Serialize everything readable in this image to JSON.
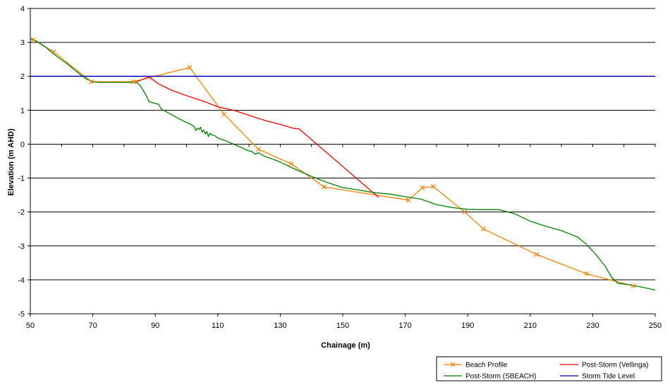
{
  "chart_data": {
    "type": "line",
    "title": "",
    "xlabel": "Chainage (m)",
    "ylabel": "Elevation (m AHD)",
    "xlim": [
      50,
      250
    ],
    "ylim": [
      -5,
      4
    ],
    "x_ticks": [
      50,
      70,
      90,
      110,
      130,
      150,
      170,
      190,
      210,
      230,
      250
    ],
    "y_ticks": [
      4,
      3,
      2,
      1,
      0,
      -1,
      -2,
      -3,
      -4,
      -5
    ],
    "grid": "horizontal",
    "legend_position": "bottom-right",
    "series": [
      {
        "name": "Beach Profile",
        "color": "#FF8000",
        "marker": "x",
        "points": [
          [
            51,
            3.08
          ],
          [
            57.5,
            2.72
          ],
          [
            69.5,
            1.84
          ],
          [
            83,
            1.84
          ],
          [
            101,
            2.26
          ],
          [
            112,
            0.88
          ],
          [
            123,
            -0.15
          ],
          [
            133.5,
            -0.58
          ],
          [
            144,
            -1.26
          ],
          [
            171,
            -1.65
          ],
          [
            175.5,
            -1.28
          ],
          [
            179,
            -1.25
          ],
          [
            189,
            -2.0
          ],
          [
            195,
            -2.5
          ],
          [
            212,
            -3.25
          ],
          [
            228,
            -3.82
          ],
          [
            243,
            -4.18
          ]
        ]
      },
      {
        "name": "Post-Storm (Vellinga)",
        "color": "#FF0000",
        "marker": "none",
        "points": [
          [
            84,
            1.84
          ],
          [
            88,
            1.98
          ],
          [
            91,
            1.78
          ],
          [
            95,
            1.6
          ],
          [
            100,
            1.43
          ],
          [
            105,
            1.28
          ],
          [
            110,
            1.1
          ],
          [
            115,
            1.0
          ],
          [
            120,
            0.85
          ],
          [
            125,
            0.7
          ],
          [
            130,
            0.58
          ],
          [
            134,
            0.47
          ],
          [
            136,
            0.45
          ],
          [
            161.5,
            -1.57
          ]
        ]
      },
      {
        "name": "Post-Storm (SBEACH)",
        "color": "#008000",
        "marker": "none",
        "points": [
          [
            50,
            3.1
          ],
          [
            52,
            3.04
          ],
          [
            55,
            2.85
          ],
          [
            58,
            2.62
          ],
          [
            62,
            2.35
          ],
          [
            66,
            2.05
          ],
          [
            68,
            1.92
          ],
          [
            70,
            1.84
          ],
          [
            72,
            1.82
          ],
          [
            84,
            1.82
          ],
          [
            85,
            1.75
          ],
          [
            86,
            1.6
          ],
          [
            87,
            1.45
          ],
          [
            88,
            1.25
          ],
          [
            90,
            1.2
          ],
          [
            91,
            1.18
          ],
          [
            92,
            1.03
          ],
          [
            93,
            0.98
          ],
          [
            95,
            0.88
          ],
          [
            97,
            0.78
          ],
          [
            99,
            0.68
          ],
          [
            101,
            0.6
          ],
          [
            102.5,
            0.52
          ],
          [
            103,
            0.4
          ],
          [
            103.5,
            0.47
          ],
          [
            104,
            0.43
          ],
          [
            104.5,
            0.5
          ],
          [
            105,
            0.35
          ],
          [
            105.5,
            0.42
          ],
          [
            106,
            0.3
          ],
          [
            106.5,
            0.37
          ],
          [
            107,
            0.22
          ],
          [
            107.5,
            0.32
          ],
          [
            108,
            0.28
          ],
          [
            109,
            0.25
          ],
          [
            110,
            0.18
          ],
          [
            112,
            0.12
          ],
          [
            115,
            0.0
          ],
          [
            118,
            -0.12
          ],
          [
            120,
            -0.2
          ],
          [
            121,
            -0.22
          ],
          [
            122,
            -0.3
          ],
          [
            123,
            -0.25
          ],
          [
            125,
            -0.36
          ],
          [
            127,
            -0.42
          ],
          [
            130,
            -0.53
          ],
          [
            135,
            -0.75
          ],
          [
            140,
            -0.95
          ],
          [
            145,
            -1.13
          ],
          [
            150,
            -1.28
          ],
          [
            155,
            -1.35
          ],
          [
            160,
            -1.43
          ],
          [
            165,
            -1.47
          ],
          [
            170,
            -1.55
          ],
          [
            175,
            -1.62
          ],
          [
            180,
            -1.78
          ],
          [
            185,
            -1.87
          ],
          [
            190,
            -1.92
          ],
          [
            195,
            -1.93
          ],
          [
            200,
            -1.93
          ],
          [
            205,
            -2.05
          ],
          [
            210,
            -2.27
          ],
          [
            215,
            -2.42
          ],
          [
            220,
            -2.55
          ],
          [
            225,
            -2.73
          ],
          [
            228,
            -2.95
          ],
          [
            231,
            -3.25
          ],
          [
            234,
            -3.6
          ],
          [
            236,
            -3.92
          ],
          [
            238,
            -4.1
          ],
          [
            242,
            -4.15
          ],
          [
            246,
            -4.22
          ],
          [
            250,
            -4.3
          ]
        ]
      },
      {
        "name": "Storm Tide Level",
        "color": "#0000C8",
        "marker": "none",
        "points": [
          [
            50,
            2.0
          ],
          [
            250,
            2.0
          ]
        ]
      }
    ]
  }
}
